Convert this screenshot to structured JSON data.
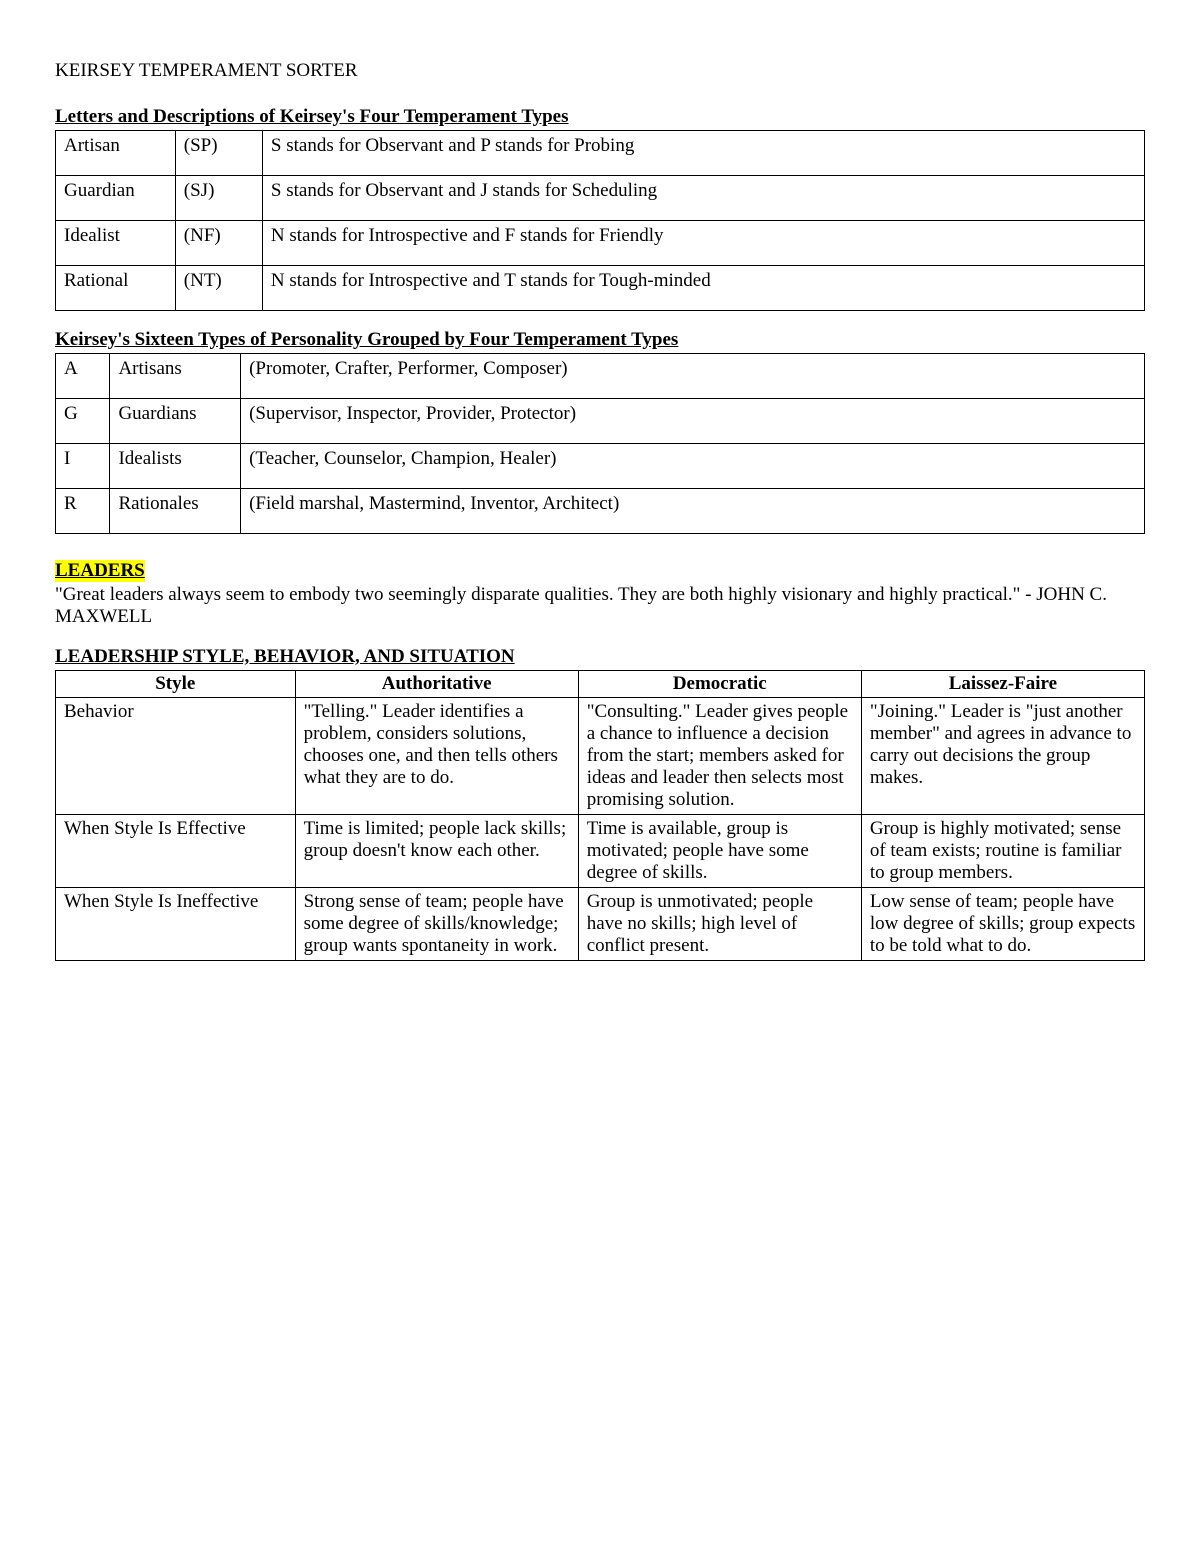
{
  "page_title": "KEIRSEY TEMPERAMENT SORTER",
  "section1": {
    "heading": "Letters and Descriptions of Keirsey's Four Temperament Types",
    "rows": [
      {
        "name": "Artisan",
        "code": "(SP)",
        "desc": "S stands for Observant and P stands for Probing"
      },
      {
        "name": "Guardian",
        "code": "(SJ)",
        "desc": "S stands for Observant and J stands for Scheduling"
      },
      {
        "name": "Idealist",
        "code": "(NF)",
        "desc": "N stands for Introspective and F stands for Friendly"
      },
      {
        "name": "Rational",
        "code": "(NT)",
        "desc": "N stands for Introspective and T stands for Tough-minded"
      }
    ]
  },
  "section2": {
    "heading": "Keirsey's Sixteen Types of Personality Grouped by Four Temperament Types",
    "rows": [
      {
        "letter": "A",
        "group": "Artisans",
        "members": "(Promoter, Crafter, Performer, Composer)"
      },
      {
        "letter": "G",
        "group": "Guardians",
        "members": "(Supervisor, Inspector, Provider, Protector)"
      },
      {
        "letter": "I",
        "group": "Idealists",
        "members": "(Teacher, Counselor, Champion, Healer)"
      },
      {
        "letter": "R",
        "group": "Rationales",
        "members": "(Field marshal, Mastermind, Inventor, Architect)"
      }
    ]
  },
  "leaders": {
    "label": "LEADERS",
    "quote": "\"Great leaders always seem to embody two seemingly disparate qualities. They are both highly visionary and highly practical.\" - JOHN C. MAXWELL"
  },
  "section3": {
    "heading": "LEADERSHIP STYLE, BEHAVIOR, AND SITUATION",
    "headers": [
      "Style",
      "Authoritative",
      "Democratic",
      "Laissez-Faire"
    ],
    "rows": [
      {
        "label": "Behavior",
        "c1": "\"Telling.\" Leader identifies a problem, considers solutions, chooses one, and then tells others what they are to do.",
        "c2": "\"Consulting.\" Leader gives people a chance to influence a decision from the start; members asked for ideas and leader then selects most promising solution.",
        "c3": "\"Joining.\" Leader is \"just another member\" and agrees in advance to carry out decisions the group makes."
      },
      {
        "label": "When Style Is Effective",
        "c1": "Time is limited; people lack skills; group doesn't know each other.",
        "c2": "Time is available, group is motivated; people have some degree of skills.",
        "c3": "Group is highly motivated; sense of team exists; routine is familiar to group members."
      },
      {
        "label": "When Style Is Ineffective",
        "c1": "Strong sense of team; people have some degree of skills/knowledge; group wants spontaneity in work.",
        "c2": "Group is unmotivated; people have no skills; high level of conflict present.",
        "c3": "Low sense of team; people have low degree of skills; group expects to be told what to do."
      }
    ]
  },
  "colors": {
    "text": "#000000",
    "background": "#ffffff",
    "highlight": "#ffff00",
    "border": "#000000"
  }
}
